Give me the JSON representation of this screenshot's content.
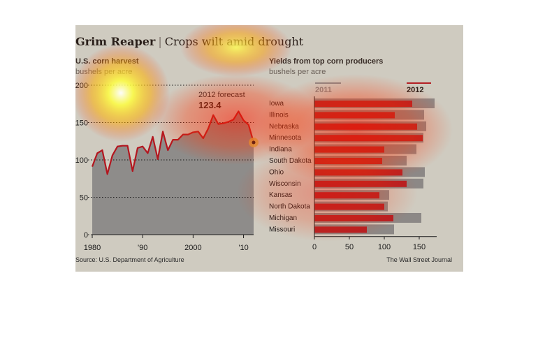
{
  "header": {
    "title_bold": "Grim Reaper",
    "separator": "|",
    "title_rest": "Crops wilt amid drought"
  },
  "footer": {
    "source": "Source: U.S. Department of Agriculture",
    "credit": "The Wall Street Journal"
  },
  "colors": {
    "background": "#cfcbc0",
    "area_fill": "#8e8c8a",
    "line": "#b3161f",
    "bar_2011": "#8c8886",
    "bar_2012": "#b41f24",
    "forecast_marker": "#d4b94a"
  },
  "chart_data": [
    {
      "type": "area",
      "title": "U.S. corn harvest",
      "subtitle": "bushels per acre",
      "x": [
        1980,
        1981,
        1982,
        1983,
        1984,
        1985,
        1986,
        1987,
        1988,
        1989,
        1990,
        1991,
        1992,
        1993,
        1994,
        1995,
        1996,
        1997,
        1998,
        1999,
        2000,
        2001,
        2002,
        2003,
        2004,
        2005,
        2006,
        2007,
        2008,
        2009,
        2010,
        2011,
        2012
      ],
      "y": [
        91,
        109,
        113,
        81,
        106,
        118,
        119,
        119,
        85,
        116,
        118,
        109,
        131,
        101,
        138,
        113,
        127,
        127,
        134,
        134,
        137,
        138,
        129,
        142,
        160,
        148,
        149,
        151,
        154,
        165,
        153,
        147,
        123.4
      ],
      "x_ticks": [
        "1980",
        "'90",
        "2000",
        "'10"
      ],
      "x_tick_values": [
        1980,
        1990,
        2000,
        2010
      ],
      "y_ticks": [
        0,
        50,
        100,
        150,
        200
      ],
      "ylim": [
        0,
        200
      ],
      "grid": "dotted horizontal",
      "annotation": {
        "label": "2012 forecast",
        "value": "123.4"
      }
    },
    {
      "type": "bar",
      "title": "Yields from top corn producers",
      "subtitle": "bushels per acre",
      "categories": [
        "Iowa",
        "Illinois",
        "Nebraska",
        "Minnesota",
        "Indiana",
        "South Dakota",
        "Ohio",
        "Wisconsin",
        "Kansas",
        "North Dakota",
        "Michigan",
        "Missouri"
      ],
      "series": [
        {
          "name": "2011",
          "values": [
            172,
            157,
            160,
            156,
            146,
            132,
            158,
            156,
            107,
            105,
            153,
            114
          ]
        },
        {
          "name": "2012",
          "values": [
            140,
            115,
            147,
            155,
            100,
            97,
            126,
            132,
            93,
            100,
            113,
            75
          ]
        }
      ],
      "x_ticks": [
        0,
        50,
        100,
        150
      ],
      "xlim": [
        0,
        175
      ],
      "legend": "top"
    }
  ]
}
